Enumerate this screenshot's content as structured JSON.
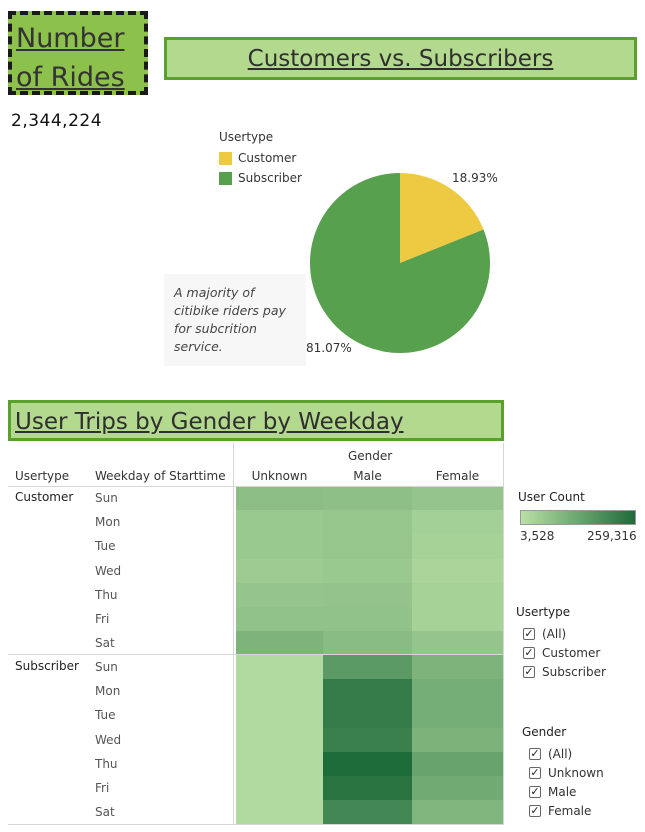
{
  "rides": {
    "title": "Number of Rides",
    "value": "2,344,224"
  },
  "pie_section": {
    "title": "Customers vs. Subscribers",
    "legend_title": "Usertype",
    "annotation": "A majority of citibike riders pay for subcrition service."
  },
  "chart_data": [
    {
      "type": "pie",
      "title": "Customers vs. Subscribers",
      "legend_title": "Usertype",
      "slices": [
        {
          "name": "Customer",
          "value": 18.93,
          "label": "18.93%",
          "color": "#eec942"
        },
        {
          "name": "Subscriber",
          "value": 81.07,
          "label": "81.07%",
          "color": "#57a04d"
        }
      ]
    },
    {
      "type": "heatmap",
      "title": "User Trips by Gender by Weekday",
      "row_headers": [
        "Usertype",
        "Weekday of Starttime"
      ],
      "column_group": "Gender",
      "columns": [
        "Unknown",
        "Male",
        "Female"
      ],
      "groups": [
        {
          "usertype": "Customer",
          "days": [
            "Sun",
            "Mon",
            "Tue",
            "Wed",
            "Thu",
            "Fri",
            "Sat"
          ],
          "levels": [
            [
              0.3,
              0.28,
              0.23
            ],
            [
              0.2,
              0.22,
              0.14
            ],
            [
              0.2,
              0.22,
              0.12
            ],
            [
              0.18,
              0.2,
              0.1
            ],
            [
              0.23,
              0.24,
              0.12
            ],
            [
              0.26,
              0.26,
              0.12
            ],
            [
              0.38,
              0.31,
              0.23
            ]
          ]
        },
        {
          "usertype": "Subscriber",
          "days": [
            "Sun",
            "Mon",
            "Tue",
            "Wed",
            "Thu",
            "Fri",
            "Sat"
          ],
          "levels": [
            [
              0.05,
              0.6,
              0.38
            ],
            [
              0.05,
              0.86,
              0.43
            ],
            [
              0.05,
              0.86,
              0.43
            ],
            [
              0.05,
              0.82,
              0.39
            ],
            [
              0.05,
              1.0,
              0.52
            ],
            [
              0.05,
              0.93,
              0.46
            ],
            [
              0.05,
              0.76,
              0.37
            ]
          ]
        }
      ],
      "legend_title": "User Count",
      "color_min": "#b9e0a5",
      "color_max": "#1e6b3a",
      "range_labels": [
        "3,528",
        "259,316"
      ]
    }
  ],
  "filters": {
    "usertype": {
      "title": "Usertype",
      "options": [
        "(All)",
        "Customer",
        "Subscriber"
      ]
    },
    "gender": {
      "title": "Gender",
      "options": [
        "(All)",
        "Unknown",
        "Male",
        "Female"
      ]
    },
    "check_glyph": "✓"
  }
}
